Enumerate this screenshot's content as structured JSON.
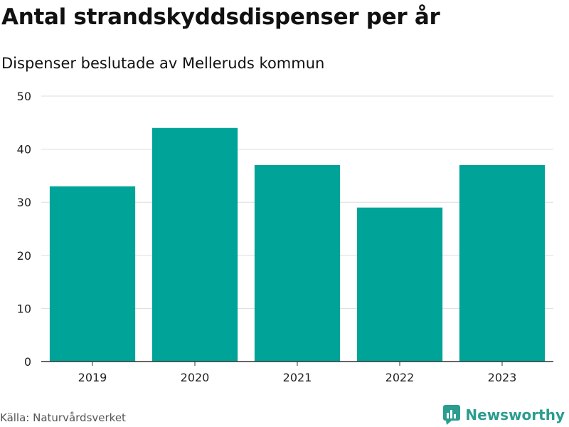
{
  "title": "Antal strandskyddsdispenser per år",
  "subtitle": "Dispenser beslutade av Melleruds kommun",
  "source": "Källa: Naturvårdsverket",
  "brand": {
    "name": "Newsworthy",
    "icon": "newsworthy-logo-icon",
    "color": "#2a9d8f"
  },
  "colors": {
    "bar": "#00a398",
    "grid": "#dddddd",
    "axis": "#333333"
  },
  "chart_data": {
    "type": "bar",
    "title": "Antal strandskyddsdispenser per år",
    "subtitle": "Dispenser beslutade av Melleruds kommun",
    "categories": [
      "2019",
      "2020",
      "2021",
      "2022",
      "2023"
    ],
    "values": [
      33,
      44,
      37,
      29,
      37
    ],
    "xlabel": "",
    "ylabel": "",
    "ylim": [
      0,
      50
    ],
    "yticks": [
      0,
      10,
      20,
      30,
      40,
      50
    ],
    "grid": true,
    "legend": "none"
  }
}
